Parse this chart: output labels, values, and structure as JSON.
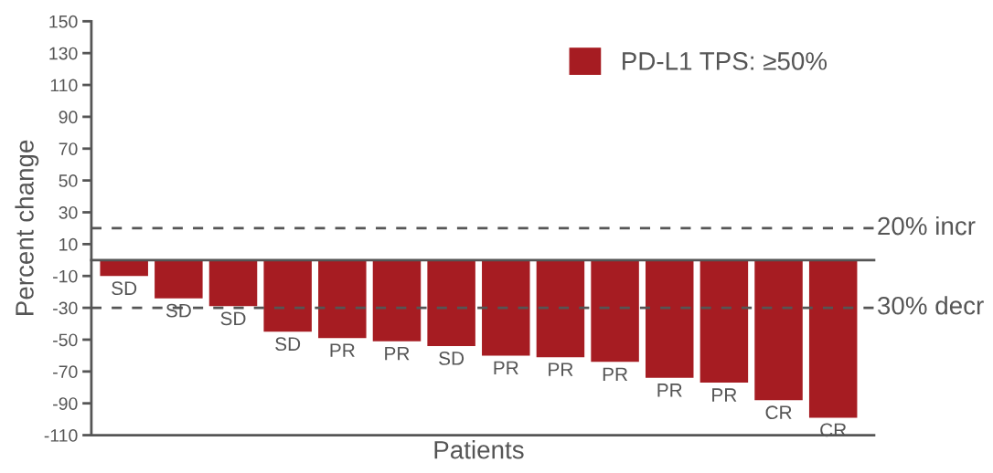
{
  "chart_data": {
    "type": "bar",
    "xlabel": "Patients",
    "ylabel": "Percent change",
    "categories": [
      null,
      null,
      null,
      null,
      null,
      null,
      null,
      null,
      null,
      null,
      null,
      null,
      null,
      null
    ],
    "series": [
      {
        "name": "PD-L1 TPS: ≥50%",
        "color": "#a61c22",
        "values": [
          -10,
          -24,
          -29,
          -45,
          -49,
          -51,
          -54,
          -60,
          -61,
          -64,
          -74,
          -77,
          -88,
          -99
        ],
        "value_labels": [
          "SD",
          "SD",
          "SD",
          "SD",
          "PR",
          "PR",
          "SD",
          "PR",
          "PR",
          "PR",
          "PR",
          "PR",
          "CR",
          "CR"
        ]
      }
    ],
    "ylim": [
      -110,
      150
    ],
    "yticks": [
      -110,
      -90,
      -70,
      -50,
      -30,
      -10,
      10,
      30,
      50,
      70,
      90,
      110,
      130,
      150
    ],
    "ref_lines": [
      {
        "axis": "y",
        "value": 0,
        "color": "#555555",
        "line_style": "solid"
      },
      {
        "axis": "y",
        "value": 20,
        "label": "20% incr",
        "color": "#555555",
        "line_style": "dashed"
      },
      {
        "axis": "y",
        "value": -30,
        "label": "30% decr",
        "color": "#555555",
        "line_style": "dashed"
      }
    ],
    "grid": false,
    "legend": "top right"
  }
}
